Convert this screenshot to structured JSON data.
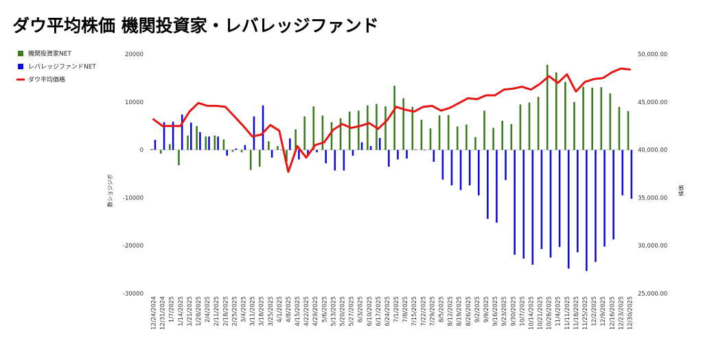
{
  "chart_data": {
    "type": "bar",
    "title": "ダウ平均株価 機関投資家・レバレッジファンド",
    "ylabel_left": "数ショジジボ",
    "ylabel_right": "株価",
    "xlabel": "",
    "left_axis": {
      "min": -30000,
      "max": 20000,
      "step": 10000,
      "tick_labels": [
        "20000",
        "10000",
        "0",
        "-10000",
        "-20000",
        "-30000"
      ]
    },
    "right_axis": {
      "min": 25000,
      "max": 50000,
      "step": 5000,
      "tick_labels": [
        "50,000.00",
        "45,000.00",
        "40,000.00",
        "35,000.00",
        "30,000.00",
        "25,000.00"
      ]
    },
    "legend_position": "top-left",
    "colors": {
      "institutional": "#3a7d1e",
      "leveraged": "#0b0bdc",
      "dow": "#e81414"
    },
    "categories": [
      "12/24/2024",
      "12/31/2024",
      "1/7/2025",
      "1/14/2025",
      "1/21/2025",
      "1/28/2025",
      "2/4/2025",
      "2/11/2025",
      "2/18/2025",
      "2/25/2025",
      "3/4/2025",
      "3/11/2025",
      "3/18/2025",
      "3/25/2025",
      "4/1/2025",
      "4/8/2025",
      "4/15/2025",
      "4/22/2025",
      "4/29/2025",
      "5/6/2025",
      "5/13/2025",
      "5/20/2025",
      "5/27/2025",
      "6/3/2025",
      "6/10/2025",
      "6/17/2025",
      "6/24/2025",
      "7/1/2025",
      "7/8/2025",
      "7/15/2025",
      "7/22/2025",
      "7/29/2025",
      "8/5/2025",
      "8/12/2025",
      "8/19/2025",
      "8/26/2025",
      "9/2/2025",
      "9/9/2025",
      "9/16/2025",
      "9/23/2025",
      "9/30/2025",
      "10/7/2025",
      "10/14/2025",
      "10/21/2025",
      "10/28/2025",
      "11/4/2025",
      "11/11/2025",
      "11/18/2025",
      "11/25/2025",
      "12/2/2025",
      "12/9/2025",
      "12/16/2025",
      "12/23/2025",
      "12/30/2025"
    ],
    "series": [
      {
        "name": "機関投資家NET",
        "kind": "bar",
        "values": [
          200,
          -800,
          1200,
          -3200,
          3000,
          5000,
          2800,
          3000,
          2200,
          -400,
          -500,
          -4200,
          -3500,
          1800,
          800,
          -2400,
          4300,
          7000,
          9100,
          7200,
          5800,
          6600,
          8000,
          8200,
          9300,
          9600,
          9100,
          13400,
          10800,
          9000,
          6300,
          4500,
          7200,
          7300,
          4900,
          5300,
          2700,
          8200,
          4600,
          6100,
          5400,
          9500,
          9900,
          11100,
          17800,
          16200,
          14200,
          10000,
          13200,
          13000,
          13100,
          11800,
          9000,
          8100
        ]
      },
      {
        "name": "レバレッジファンドNET",
        "kind": "bar",
        "values": [
          2100,
          5800,
          5900,
          7400,
          5700,
          3700,
          2800,
          2800,
          -1200,
          300,
          1000,
          7000,
          9300,
          -1600,
          0,
          2400,
          -2000,
          -1200,
          -500,
          -2800,
          -4300,
          -4300,
          -1200,
          1600,
          800,
          2500,
          -3500,
          -2000,
          -1800,
          100,
          -100,
          -2500,
          -6200,
          -7400,
          -8400,
          -7400,
          -9500,
          -14400,
          -15200,
          -6300,
          -21900,
          -22700,
          -24000,
          -20700,
          -22500,
          -20300,
          -24800,
          -21400,
          -25300,
          -23400,
          -20200,
          -18700,
          -9500,
          -10200
        ]
      },
      {
        "name": "ダウ平均価格",
        "kind": "line",
        "values": [
          43200,
          42500,
          42500,
          42500,
          44000,
          44900,
          44600,
          44600,
          44500,
          43500,
          42500,
          41400,
          41600,
          42600,
          42000,
          37700,
          40400,
          39200,
          40500,
          40800,
          42100,
          42700,
          42300,
          42500,
          42800,
          42200,
          43100,
          44500,
          44200,
          44000,
          44500,
          44600,
          44100,
          44400,
          44900,
          45400,
          45300,
          45700,
          45700,
          46300,
          46400,
          46600,
          46300,
          46900,
          47700,
          47000,
          47900,
          46100,
          47100,
          47400,
          47500,
          48100,
          48500,
          48400
        ]
      }
    ]
  }
}
